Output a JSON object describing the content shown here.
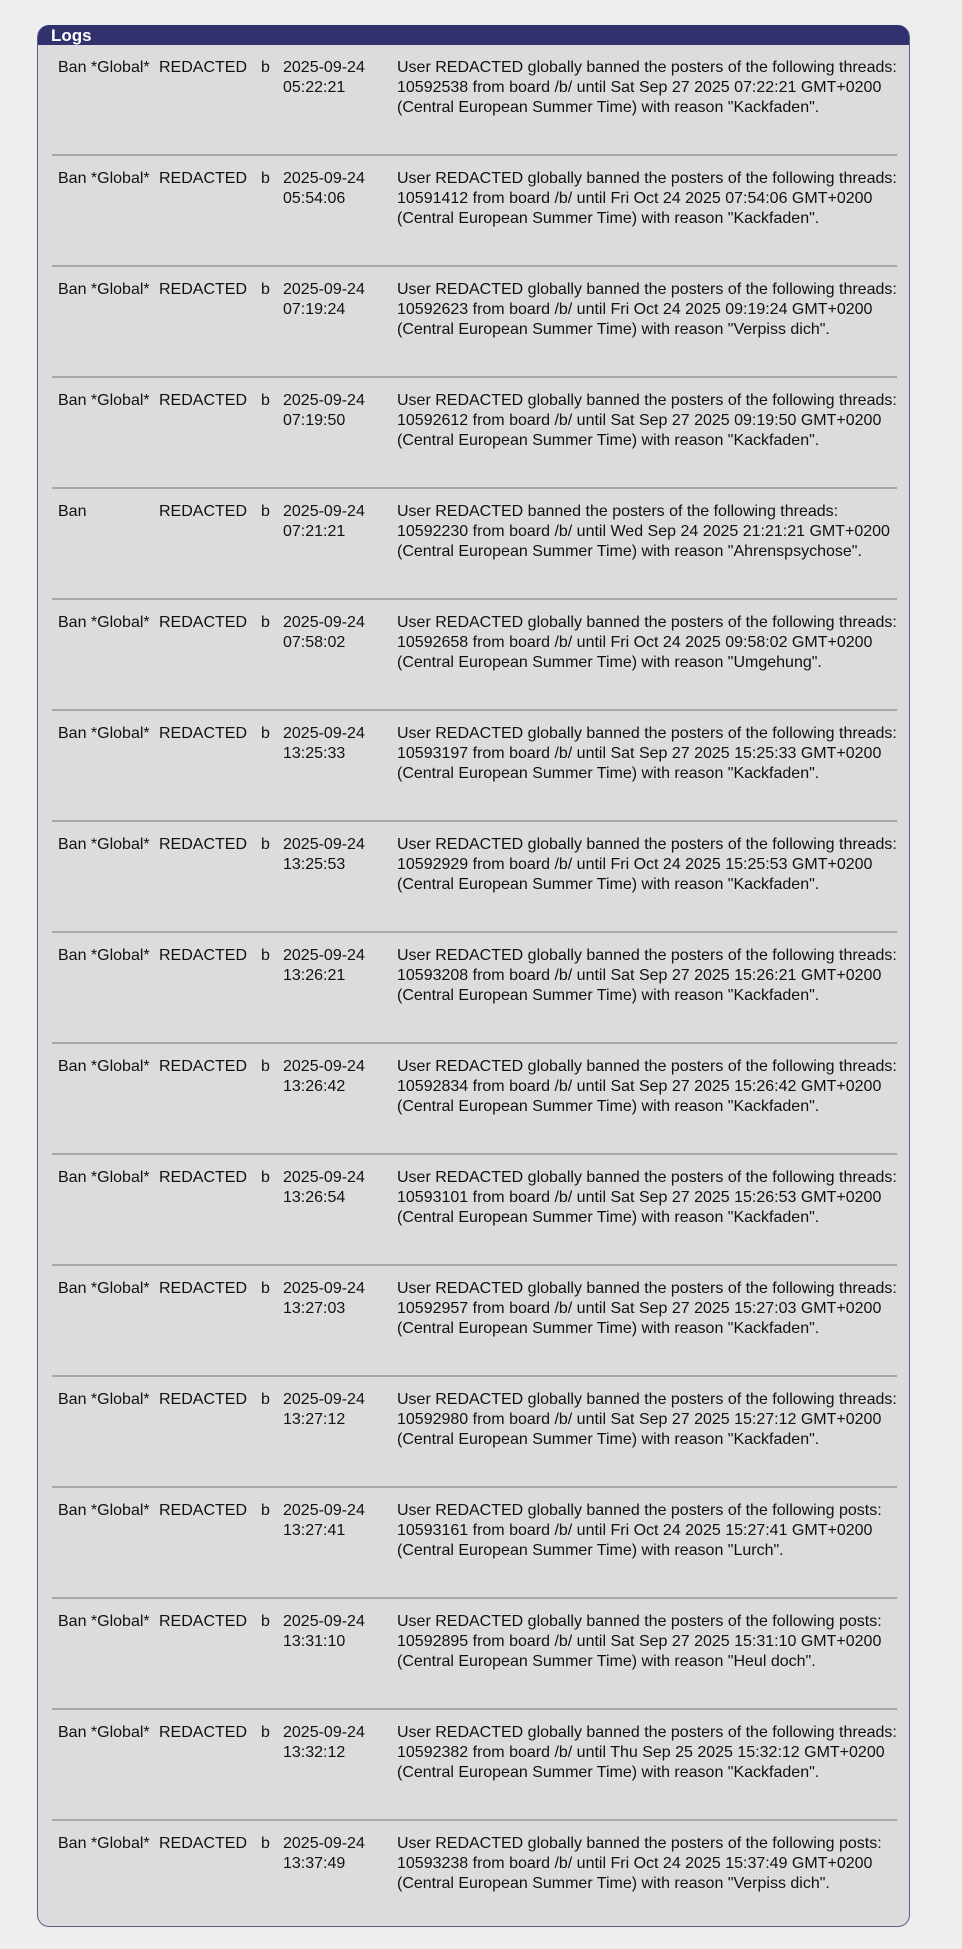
{
  "panel": {
    "title": "Logs"
  },
  "logs": [
    {
      "type": "Ban *Global*",
      "user": "REDACTED",
      "board": "b",
      "date": "2025-09-24",
      "time": "05:22:21",
      "desc": "User REDACTED globally banned the posters of the following threads: 10592538 from board /b/ until Sat Sep 27 2025 07:22:21 GMT+0200 (Central European Summer Time) with reason \"Kackfaden\"."
    },
    {
      "type": "Ban *Global*",
      "user": "REDACTED",
      "board": "b",
      "date": "2025-09-24",
      "time": "05:54:06",
      "desc": "User REDACTED globally banned the posters of the following threads: 10591412 from board /b/ until Fri Oct 24 2025 07:54:06 GMT+0200 (Central European Summer Time) with reason \"Kackfaden\"."
    },
    {
      "type": "Ban *Global*",
      "user": "REDACTED",
      "board": "b",
      "date": "2025-09-24",
      "time": "07:19:24",
      "desc": "User REDACTED globally banned the posters of the following threads: 10592623 from board /b/ until Fri Oct 24 2025 09:19:24 GMT+0200 (Central European Summer Time) with reason \"Verpiss dich\"."
    },
    {
      "type": "Ban *Global*",
      "user": "REDACTED",
      "board": "b",
      "date": "2025-09-24",
      "time": "07:19:50",
      "desc": "User REDACTED globally banned the posters of the following threads: 10592612 from board /b/ until Sat Sep 27 2025 09:19:50 GMT+0200 (Central European Summer Time) with reason \"Kackfaden\"."
    },
    {
      "type": "Ban",
      "user": "REDACTED",
      "board": "b",
      "date": "2025-09-24",
      "time": "07:21:21",
      "desc": "User REDACTED banned the posters of the following threads: 10592230 from board /b/ until Wed Sep 24 2025 21:21:21 GMT+0200 (Central European Summer Time) with reason \"Ahrenspsychose\"."
    },
    {
      "type": "Ban *Global*",
      "user": "REDACTED",
      "board": "b",
      "date": "2025-09-24",
      "time": "07:58:02",
      "desc": "User REDACTED globally banned the posters of the following threads: 10592658 from board /b/ until Fri Oct 24 2025 09:58:02 GMT+0200 (Central European Summer Time) with reason \"Umgehung\"."
    },
    {
      "type": "Ban *Global*",
      "user": "REDACTED",
      "board": "b",
      "date": "2025-09-24",
      "time": "13:25:33",
      "desc": "User REDACTED globally banned the posters of the following threads: 10593197 from board /b/ until Sat Sep 27 2025 15:25:33 GMT+0200 (Central European Summer Time) with reason \"Kackfaden\"."
    },
    {
      "type": "Ban *Global*",
      "user": "REDACTED",
      "board": "b",
      "date": "2025-09-24",
      "time": "13:25:53",
      "desc": "User REDACTED globally banned the posters of the following threads: 10592929 from board /b/ until Fri Oct 24 2025 15:25:53 GMT+0200 (Central European Summer Time) with reason \"Kackfaden\"."
    },
    {
      "type": "Ban *Global*",
      "user": "REDACTED",
      "board": "b",
      "date": "2025-09-24",
      "time": "13:26:21",
      "desc": "User REDACTED globally banned the posters of the following threads: 10593208 from board /b/ until Sat Sep 27 2025 15:26:21 GMT+0200 (Central European Summer Time) with reason \"Kackfaden\"."
    },
    {
      "type": "Ban *Global*",
      "user": "REDACTED",
      "board": "b",
      "date": "2025-09-24",
      "time": "13:26:42",
      "desc": "User REDACTED globally banned the posters of the following threads: 10592834 from board /b/ until Sat Sep 27 2025 15:26:42 GMT+0200 (Central European Summer Time) with reason \"Kackfaden\"."
    },
    {
      "type": "Ban *Global*",
      "user": "REDACTED",
      "board": "b",
      "date": "2025-09-24",
      "time": "13:26:54",
      "desc": "User REDACTED globally banned the posters of the following threads: 10593101 from board /b/ until Sat Sep 27 2025 15:26:53 GMT+0200 (Central European Summer Time) with reason \"Kackfaden\"."
    },
    {
      "type": "Ban *Global*",
      "user": "REDACTED",
      "board": "b",
      "date": "2025-09-24",
      "time": "13:27:03",
      "desc": "User REDACTED globally banned the posters of the following threads: 10592957 from board /b/ until Sat Sep 27 2025 15:27:03 GMT+0200 (Central European Summer Time) with reason \"Kackfaden\"."
    },
    {
      "type": "Ban *Global*",
      "user": "REDACTED",
      "board": "b",
      "date": "2025-09-24",
      "time": "13:27:12",
      "desc": "User REDACTED globally banned the posters of the following threads: 10592980 from board /b/ until Sat Sep 27 2025 15:27:12 GMT+0200 (Central European Summer Time) with reason \"Kackfaden\"."
    },
    {
      "type": "Ban *Global*",
      "user": "REDACTED",
      "board": "b",
      "date": "2025-09-24",
      "time": "13:27:41",
      "desc": "User REDACTED globally banned the posters of the following posts: 10593161 from board /b/ until Fri Oct 24 2025 15:27:41 GMT+0200 (Central European Summer Time) with reason \"Lurch\"."
    },
    {
      "type": "Ban *Global*",
      "user": "REDACTED",
      "board": "b",
      "date": "2025-09-24",
      "time": "13:31:10",
      "desc": "User REDACTED globally banned the posters of the following posts: 10592895 from board /b/ until Sat Sep 27 2025 15:31:10 GMT+0200 (Central European Summer Time) with reason \"Heul doch\"."
    },
    {
      "type": "Ban *Global*",
      "user": "REDACTED",
      "board": "b",
      "date": "2025-09-24",
      "time": "13:32:12",
      "desc": "User REDACTED globally banned the posters of the following threads: 10592382 from board /b/ until Thu Sep 25 2025 15:32:12 GMT+0200 (Central European Summer Time) with reason \"Kackfaden\"."
    },
    {
      "type": "Ban *Global*",
      "user": "REDACTED",
      "board": "b",
      "date": "2025-09-24",
      "time": "13:37:49",
      "desc": "User REDACTED globally banned the posters of the following posts: 10593238 from board /b/ until Fri Oct 24 2025 15:37:49 GMT+0200 (Central European Summer Time) with reason \"Verpiss dich\"."
    }
  ]
}
